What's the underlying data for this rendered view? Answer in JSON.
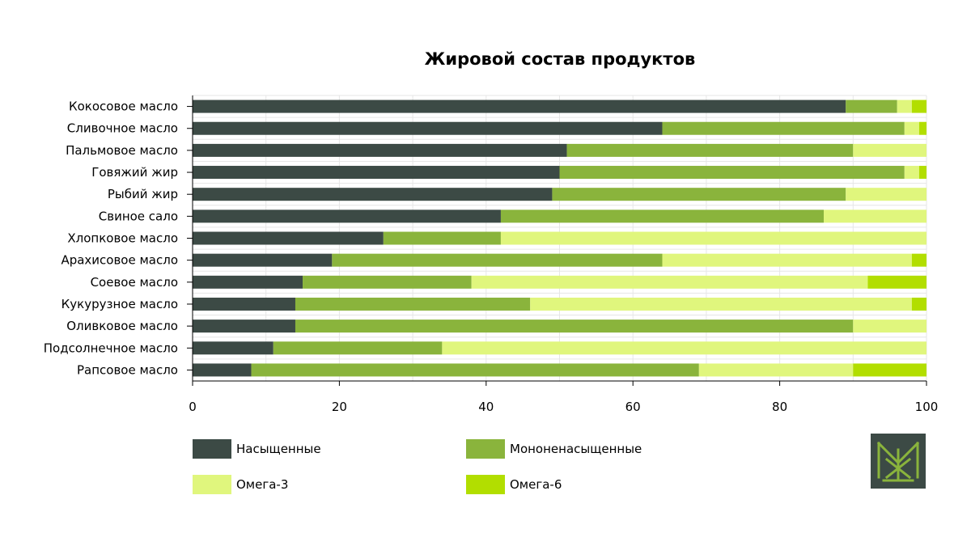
{
  "chart_data": {
    "type": "bar",
    "orientation": "horizontal",
    "stacked": true,
    "title": "Жировой состав продуктов",
    "xlabel": "",
    "ylabel": "",
    "xlim": [
      0,
      100
    ],
    "xticks": [
      0,
      20,
      40,
      60,
      80,
      100
    ],
    "grid": true,
    "legend_position": "bottom",
    "categories": [
      "Кокосовое масло",
      "Сливочное масло",
      "Пальмовое масло",
      "Говяжий жир",
      "Рыбий жир",
      "Свиное сало",
      "Хлопковое масло",
      "Арахисовое масло",
      "Соевое масло",
      "Кукурузное масло",
      "Оливковое масло",
      "Подсолнечное масло",
      "Рапсовое масло"
    ],
    "series": [
      {
        "name": "Насыщенные",
        "color": "#3c4a45",
        "values": [
          89,
          64,
          51,
          50,
          49,
          42,
          26,
          19,
          15,
          14,
          14,
          11,
          8
        ]
      },
      {
        "name": "Мононенасыщенные",
        "color": "#8ab43c",
        "values": [
          7,
          33,
          39,
          47,
          40,
          44,
          16,
          45,
          23,
          32,
          76,
          23,
          61
        ]
      },
      {
        "name": "Омега-3",
        "color": "#e0f67d",
        "values": [
          2,
          2,
          10,
          2,
          11,
          14,
          58,
          34,
          54,
          52,
          10,
          66,
          21
        ]
      },
      {
        "name": "Омега-6",
        "color": "#b2de00",
        "values": [
          2,
          1,
          0,
          1,
          0,
          0,
          0,
          2,
          8,
          2,
          0,
          0,
          10
        ]
      }
    ]
  },
  "logo": {
    "icon": "company-logo-icon"
  }
}
